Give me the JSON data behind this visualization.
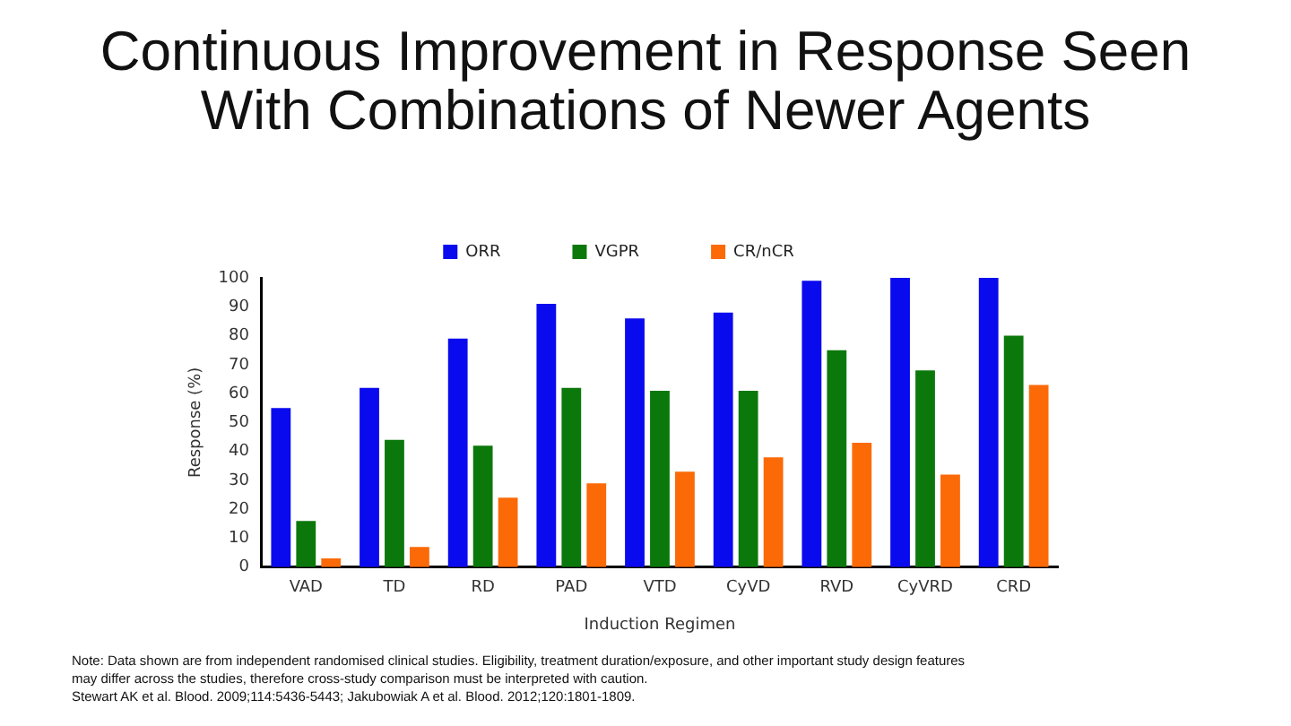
{
  "chart_data": {
    "type": "bar",
    "title": "Continuous Improvement in Response Seen With Combinations of Newer Agents",
    "categories": [
      "VAD",
      "TD",
      "RD",
      "PAD",
      "VTD",
      "CyVD",
      "RVD",
      "CyVRD",
      "CRD"
    ],
    "series": [
      {
        "name": "ORR",
        "color": "#0a0aee",
        "values": [
          55,
          62,
          79,
          91,
          86,
          88,
          99,
          100,
          100
        ]
      },
      {
        "name": "VGPR",
        "color": "#0b780b",
        "values": [
          16,
          44,
          42,
          62,
          61,
          61,
          75,
          68,
          80
        ]
      },
      {
        "name": "CR/nCR",
        "color": "#fb6a07",
        "values": [
          3,
          7,
          24,
          29,
          33,
          38,
          43,
          32,
          63
        ]
      }
    ],
    "xlabel": "Induction Regimen",
    "ylabel": "Response (%)",
    "ylim": [
      0,
      100
    ],
    "yticks": [
      0,
      10,
      20,
      30,
      40,
      50,
      60,
      70,
      80,
      90,
      100
    ],
    "grid": false,
    "legend": "top",
    "annotations": [
      "Note: Data shown are from independent randomised clinical studies. Eligibility, treatment duration/exposure, and other important study design features may differ across the studies, therefore cross-study comparison must be interpreted with caution.",
      "Stewart AK et al. Blood. 2009;114:5436-5443; Jakubowiak A et al. Blood. 2012;120:1801-1809."
    ]
  }
}
